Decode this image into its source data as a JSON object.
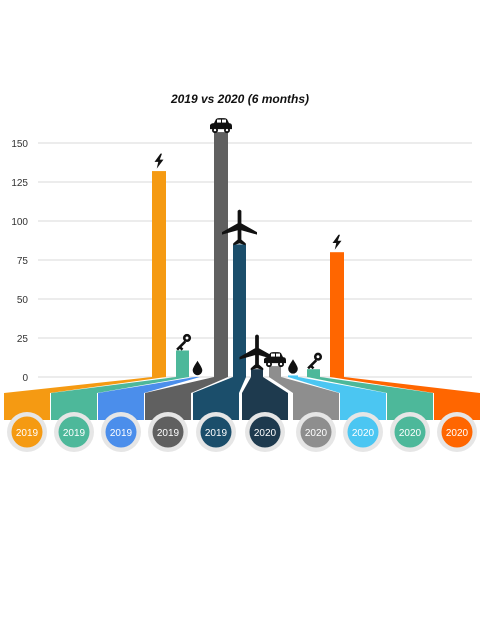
{
  "chart_data": {
    "type": "bar",
    "title": "2019 vs 2020 (6 months)",
    "xlabel": "",
    "ylabel": "",
    "ylim": [
      0,
      150
    ],
    "y_ticks": [
      0,
      25,
      50,
      75,
      100,
      125,
      150
    ],
    "grid": true,
    "legend": "none",
    "bars": [
      {
        "year": "2019",
        "value": 132,
        "color": "#F59A12",
        "icon": "lightning-icon"
      },
      {
        "year": "2019",
        "value": 17,
        "color": "#4DB89A",
        "icon": "key-icon"
      },
      {
        "year": "2019",
        "value": 0,
        "color": "#4B8EEB",
        "icon": "droplet-icon"
      },
      {
        "year": "2019",
        "value": 157,
        "color": "#606060",
        "icon": "car-icon"
      },
      {
        "year": "2019",
        "value": 85,
        "color": "#1B4E6B",
        "icon": "airplane-icon"
      },
      {
        "year": "2020",
        "value": 5,
        "color": "#1E3A4E",
        "icon": "airplane-icon"
      },
      {
        "year": "2020",
        "value": 7,
        "color": "#8E8E8E",
        "icon": "car-icon"
      },
      {
        "year": "2020",
        "value": 1,
        "color": "#4BC6F2",
        "icon": "droplet-icon"
      },
      {
        "year": "2020",
        "value": 5,
        "color": "#4DB89A",
        "icon": "key-icon"
      },
      {
        "year": "2020",
        "value": 80,
        "color": "#FF6600",
        "icon": "lightning-icon"
      }
    ]
  }
}
